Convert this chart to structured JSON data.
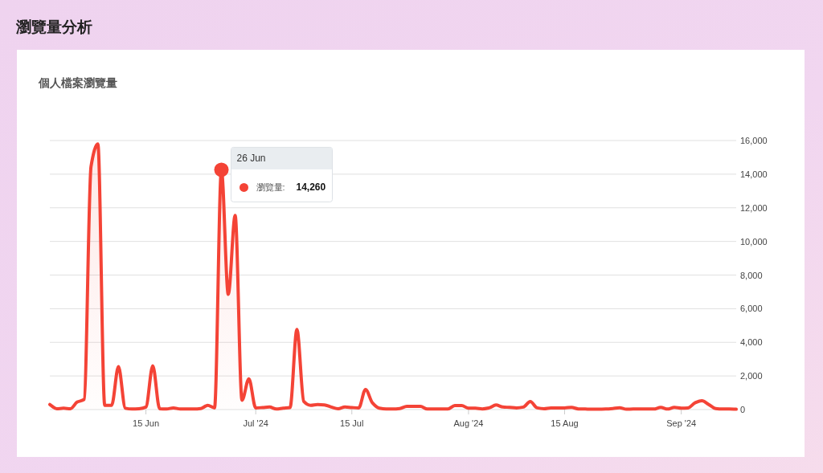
{
  "chart_data": {
    "type": "area",
    "title": "瀏覽量分析",
    "subtitle": "個人檔案瀏覽量",
    "xlim": [
      "2024-06-01",
      "2024-09-09"
    ],
    "xticks": [
      {
        "value": "2024-06-15",
        "label": "15 Jun"
      },
      {
        "value": "2024-07-01",
        "label": "Jul '24"
      },
      {
        "value": "2024-07-15",
        "label": "15 Jul"
      },
      {
        "value": "2024-08-01",
        "label": "Aug '24"
      },
      {
        "value": "2024-08-15",
        "label": "15 Aug"
      },
      {
        "value": "2024-09-01",
        "label": "Sep '24"
      }
    ],
    "ylim": [
      0,
      16000
    ],
    "yticks": [
      0,
      {
        "value": 2000,
        "label": "2,000"
      },
      {
        "value": 4000,
        "label": "4,000"
      },
      {
        "value": 6000,
        "label": "6,000"
      },
      {
        "value": 8000,
        "label": "8,000"
      },
      {
        "value": 10000,
        "label": "10,000"
      },
      {
        "value": 12000,
        "label": "12,000"
      },
      {
        "value": 14000,
        "label": "14,000"
      },
      {
        "value": 16000,
        "label": "16,000"
      }
    ],
    "grid": "y",
    "annotations": [
      {
        "text": "26 Jun",
        "x": "2024-06-26",
        "y": 14260
      },
      "14,260"
    ],
    "series": [
      {
        "name": "瀏覽量:",
        "color": "#f44336",
        "x": [
          "2024-06-01",
          "2024-06-02",
          "2024-06-03",
          "2024-06-04",
          "2024-06-05",
          "2024-06-06",
          "2024-06-07",
          "2024-06-08",
          "2024-06-09",
          "2024-06-10",
          "2024-06-11",
          "2024-06-12",
          "2024-06-13",
          "2024-06-14",
          "2024-06-15",
          "2024-06-16",
          "2024-06-17",
          "2024-06-18",
          "2024-06-19",
          "2024-06-20",
          "2024-06-21",
          "2024-06-22",
          "2024-06-23",
          "2024-06-24",
          "2024-06-25",
          "2024-06-26",
          "2024-06-27",
          "2024-06-28",
          "2024-06-29",
          "2024-06-30",
          "2024-07-01",
          "2024-07-02",
          "2024-07-03",
          "2024-07-04",
          "2024-07-05",
          "2024-07-06",
          "2024-07-07",
          "2024-07-08",
          "2024-07-09",
          "2024-07-10",
          "2024-07-11",
          "2024-07-12",
          "2024-07-13",
          "2024-07-14",
          "2024-07-15",
          "2024-07-16",
          "2024-07-17",
          "2024-07-18",
          "2024-07-19",
          "2024-07-20",
          "2024-07-21",
          "2024-07-22",
          "2024-07-23",
          "2024-07-24",
          "2024-07-25",
          "2024-07-26",
          "2024-07-27",
          "2024-07-28",
          "2024-07-29",
          "2024-07-30",
          "2024-07-31",
          "2024-08-01",
          "2024-08-02",
          "2024-08-03",
          "2024-08-04",
          "2024-08-05",
          "2024-08-06",
          "2024-08-07",
          "2024-08-08",
          "2024-08-09",
          "2024-08-10",
          "2024-08-11",
          "2024-08-12",
          "2024-08-13",
          "2024-08-14",
          "2024-08-15",
          "2024-08-16",
          "2024-08-17",
          "2024-08-18",
          "2024-08-19",
          "2024-08-20",
          "2024-08-21",
          "2024-08-22",
          "2024-08-23",
          "2024-08-24",
          "2024-08-25",
          "2024-08-26",
          "2024-08-27",
          "2024-08-28",
          "2024-08-29",
          "2024-08-30",
          "2024-08-31",
          "2024-09-01",
          "2024-09-02",
          "2024-09-03",
          "2024-09-04",
          "2024-09-05",
          "2024-09-06",
          "2024-09-07",
          "2024-09-08",
          "2024-09-09"
        ],
        "values": [
          300,
          50,
          80,
          50,
          450,
          600,
          14450,
          15800,
          250,
          250,
          2550,
          80,
          30,
          50,
          150,
          2600,
          50,
          30,
          100,
          30,
          30,
          30,
          60,
          250,
          100,
          14260,
          6850,
          11550,
          550,
          1830,
          100,
          120,
          150,
          30,
          80,
          120,
          4770,
          480,
          250,
          300,
          280,
          150,
          50,
          150,
          120,
          100,
          1200,
          400,
          80,
          30,
          30,
          60,
          190,
          190,
          190,
          30,
          30,
          30,
          30,
          240,
          240,
          80,
          80,
          40,
          100,
          270,
          150,
          130,
          100,
          150,
          480,
          100,
          50,
          100,
          100,
          100,
          130,
          40,
          30,
          20,
          20,
          30,
          60,
          110,
          20,
          30,
          30,
          30,
          30,
          130,
          30,
          130,
          80,
          100,
          400,
          530,
          300,
          60,
          30,
          30,
          20
        ]
      }
    ]
  }
}
